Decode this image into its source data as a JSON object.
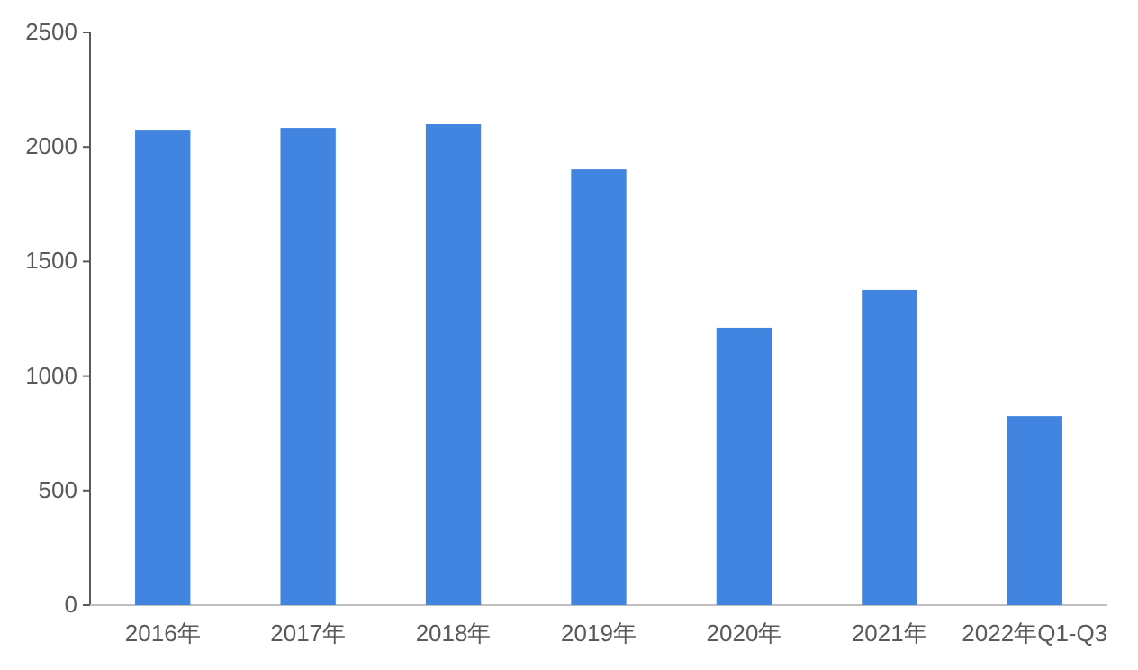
{
  "chart_data": {
    "type": "bar",
    "categories": [
      "2016年",
      "2017年",
      "2018年",
      "2019年",
      "2020年",
      "2021年",
      "2022年Q1-Q3"
    ],
    "values": [
      2075,
      2083,
      2099,
      1902,
      1211,
      1376,
      825
    ],
    "color": "#4185e0",
    "ylim": [
      0,
      2500
    ],
    "yticks": [
      0,
      500,
      1000,
      1500,
      2000,
      2500
    ],
    "grid": false
  }
}
